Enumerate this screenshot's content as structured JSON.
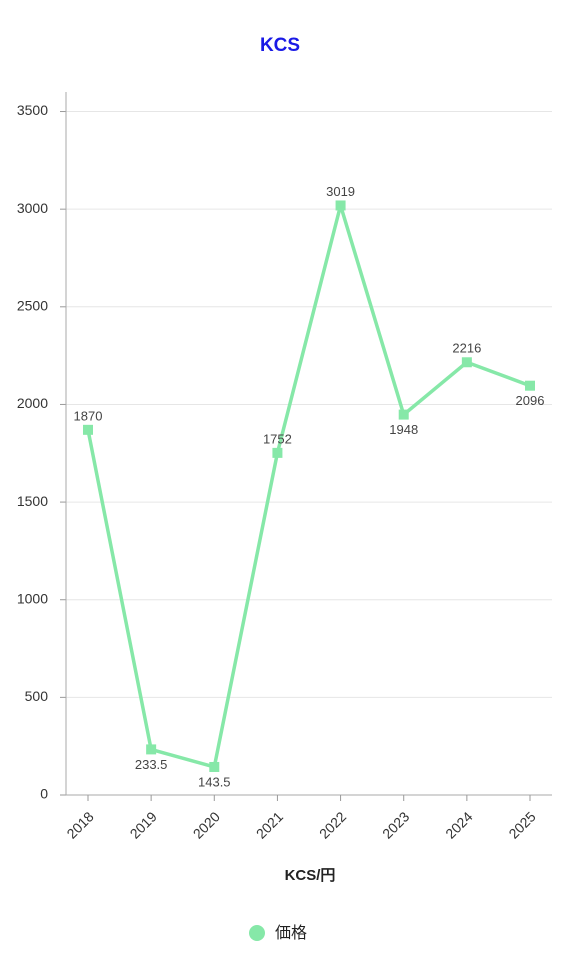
{
  "chart_data": {
    "type": "line",
    "title": "KCS",
    "x_label": "KCS/円",
    "categories": [
      "2018",
      "2019",
      "2020",
      "2021",
      "2022",
      "2023",
      "2024",
      "2025"
    ],
    "series": [
      {
        "name": "価格",
        "color": "#86e8a8",
        "values": [
          1870,
          233.5,
          143.5,
          1752,
          3019,
          1948,
          2216,
          2096
        ]
      }
    ],
    "ylim": [
      0,
      3600
    ],
    "yticks": [
      0,
      500,
      1000,
      1500,
      2000,
      2500,
      3000,
      3500
    ],
    "grid": true,
    "legend": "bottom"
  }
}
